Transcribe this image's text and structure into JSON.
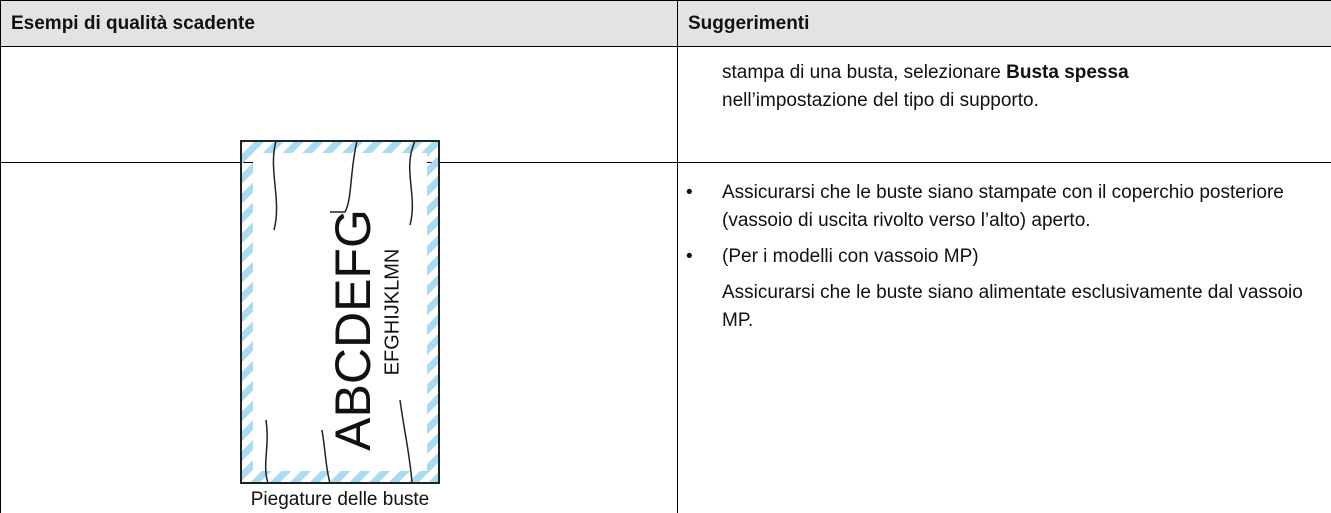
{
  "table": {
    "headers": [
      "Esempi di qualità scadente",
      "Suggerimenti"
    ],
    "rows": [
      {
        "tip": {
          "before": "stampa di una busta, selezionare",
          "bold": "Busta spessa",
          "after": "nell’impostazione del tipo di supporto."
        }
      },
      {
        "example": {
          "large_text": "ABCDEFG",
          "small_text": "EFGHIJKLMN",
          "caption": "Piegature delle buste"
        },
        "tips": [
          {
            "text": "Assicurarsi che le buste siano stampate con il coperchio posteriore (vassoio di uscita rivolto verso l’alto) aperto."
          },
          {
            "text": "(Per i modelli con vassoio MP)",
            "note": "Assicurarsi che le buste siano alimentate esclusivamente dal vassoio MP."
          }
        ]
      }
    ]
  }
}
